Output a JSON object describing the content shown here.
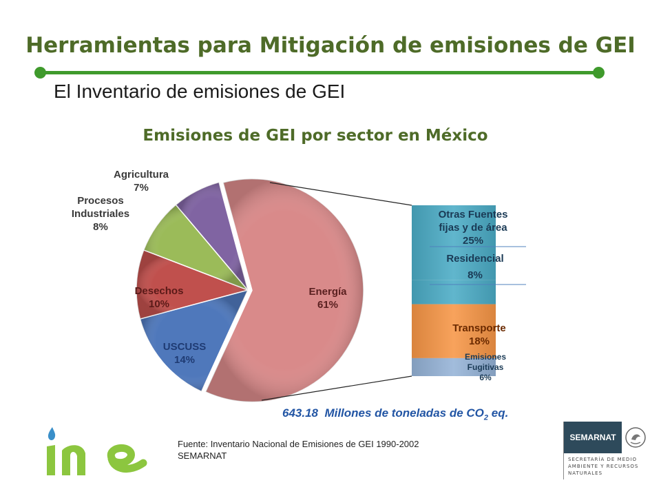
{
  "header": {
    "title": "Herramientas para Mitigación de emisiones de GEI",
    "subtitle": "El Inventario de emisiones de GEI"
  },
  "chart_data": {
    "type": "pie",
    "title": "Emisiones de GEI por sector en México",
    "slices": [
      {
        "label": "Energía",
        "pct_text": "61%",
        "value": 61,
        "color": "#d98a8a"
      },
      {
        "label": "USCUSS",
        "pct_text": "14%",
        "value": 14,
        "color": "#4f78bb"
      },
      {
        "label": "Desechos",
        "pct_text": "10%",
        "value": 10,
        "color": "#c0504d"
      },
      {
        "label": "Procesos Industriales",
        "pct_text": "8%",
        "value": 8,
        "color": "#9bbb59"
      },
      {
        "label": "Agricultura",
        "pct_text": "7%",
        "value": 7,
        "color": "#8064a2"
      }
    ],
    "breakdown": {
      "parent": "Energía",
      "segments": [
        {
          "label": "Otras Fuentes fijas y de área",
          "pct_text": "25%",
          "value": 25,
          "color": "#4bacc6"
        },
        {
          "label": "Residencial",
          "pct_text": "8%",
          "value": 8,
          "color": "#4bacc6"
        },
        {
          "label": "Transporte",
          "pct_text": "18%",
          "value": 18,
          "color": "#f79646"
        },
        {
          "label": "Emisiones Fugitivas",
          "pct_text": "6%",
          "value": 6,
          "color": "#95b3d7"
        }
      ]
    },
    "total": {
      "value": "643.18",
      "text_before_sub": "Millones de toneladas de CO",
      "sub": "2",
      "text_after_sub": " eq."
    }
  },
  "footer": {
    "source_line1": "Fuente: Inventario Nacional de Emisiones de GEI 1990-2002",
    "source_line2": "SEMARNAT",
    "logo_left": "ine",
    "logo_right_title": "SEMARNAT",
    "logo_right_subtitle": "SECRETARÍA DE MEDIO AMBIENTE Y RECURSOS NATURALES"
  }
}
